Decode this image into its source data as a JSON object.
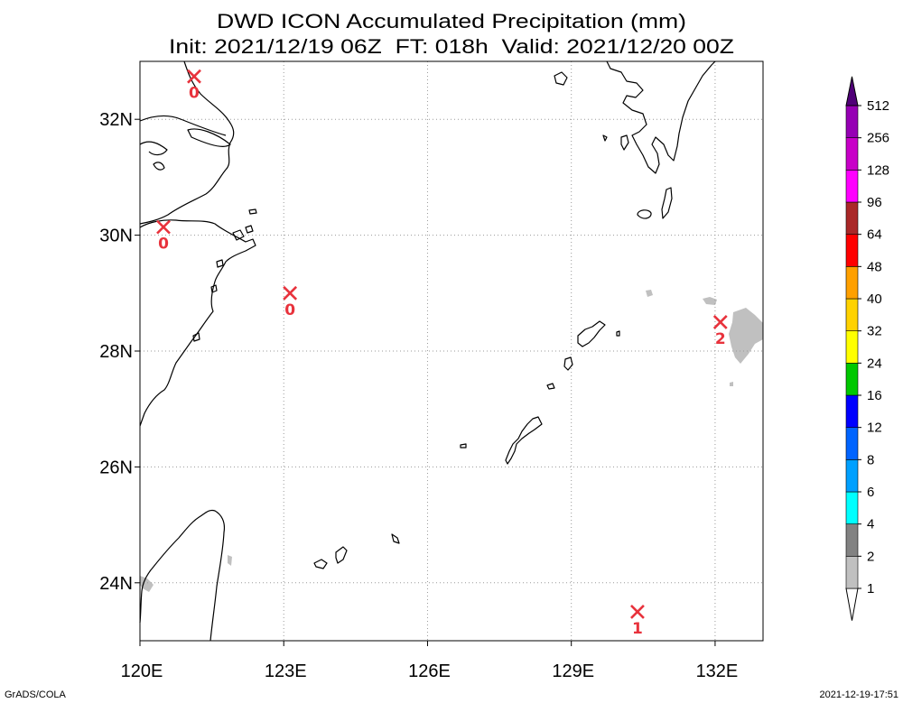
{
  "title": {
    "line1": "DWD ICON Accumulated Precipitation (mm)",
    "line2": "Init: 2021/12/19 06Z  FT: 018h  Valid: 2021/12/20 00Z"
  },
  "map": {
    "lon_range": [
      120,
      133
    ],
    "lat_range": [
      23,
      33
    ],
    "lon_ticks": [
      {
        "value": 120,
        "label": "120E"
      },
      {
        "value": 123,
        "label": "123E"
      },
      {
        "value": 126,
        "label": "126E"
      },
      {
        "value": 129,
        "label": "129E"
      },
      {
        "value": 132,
        "label": "132E"
      }
    ],
    "lat_ticks": [
      {
        "value": 24,
        "label": "24N"
      },
      {
        "value": 26,
        "label": "26N"
      },
      {
        "value": 28,
        "label": "28N"
      },
      {
        "value": 30,
        "label": "30N"
      },
      {
        "value": 32,
        "label": "32N"
      }
    ],
    "grid": true
  },
  "stations": [
    {
      "lon": 121.13,
      "lat": 32.74,
      "value": "0"
    },
    {
      "lon": 120.49,
      "lat": 30.14,
      "value": "0"
    },
    {
      "lon": 123.13,
      "lat": 29.0,
      "value": "0"
    },
    {
      "lon": 132.11,
      "lat": 28.5,
      "value": "2"
    },
    {
      "lon": 130.38,
      "lat": 23.5,
      "value": "1"
    }
  ],
  "colorbar": {
    "levels": [
      "1",
      "2",
      "4",
      "6",
      "8",
      "12",
      "16",
      "24",
      "32",
      "40",
      "48",
      "64",
      "96",
      "128",
      "256",
      "512"
    ],
    "colors": [
      "#ffffff",
      "#c0c0c0",
      "#828282",
      "#00ffff",
      "#00a0ff",
      "#0064ff",
      "#0000ff",
      "#00c800",
      "#ffff00",
      "#ffd200",
      "#ffa000",
      "#ff0000",
      "#aa2828",
      "#ff00ff",
      "#c800c8",
      "#9600b4",
      "#500078"
    ]
  },
  "colors": {
    "marker": "#e8323c",
    "grid": "#9a9a9a",
    "coast": "#000000",
    "precip_shade": "#c0c0c0"
  },
  "footer": {
    "left": "GrADS/COLA",
    "right": "2021-12-19-17:51"
  }
}
